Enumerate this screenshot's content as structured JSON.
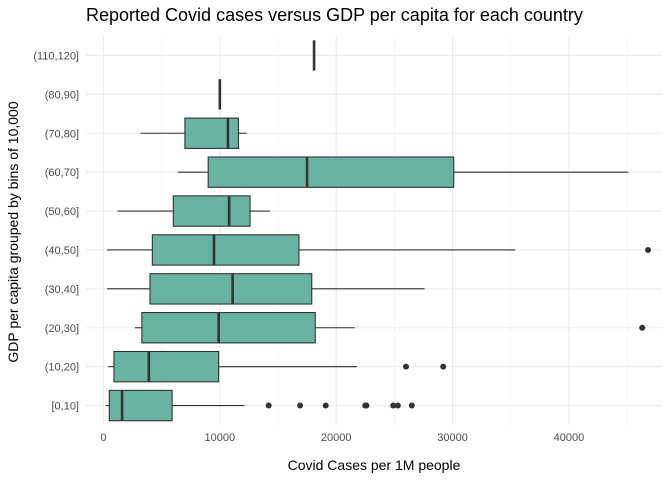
{
  "chart_data": {
    "type": "boxplot",
    "orientation": "horizontal",
    "title": "Reported Covid cases versus GDP per capita for each country",
    "xlabel": "Covid Cases per 1M people",
    "ylabel": "GDP per capita grouped by bins of 10,000",
    "xlim": [
      -1500,
      48000
    ],
    "x_ticks": [
      0,
      10000,
      20000,
      30000,
      40000
    ],
    "x_tick_labels": [
      "0",
      "10000",
      "20000",
      "30000",
      "40000"
    ],
    "x_minor_ticks": [
      5000,
      15000,
      25000,
      35000,
      45000
    ],
    "grid": true,
    "box_color": "#69b3a2",
    "categories": [
      "[0,10]",
      "(10,20]",
      "(20,30]",
      "(30,40]",
      "(40,50]",
      "(50,60]",
      "(60,70]",
      "(70,80]",
      "(80,90]",
      "(110,120]"
    ],
    "boxes": [
      {
        "category": "[0,10]",
        "whisker_low": 200,
        "q1": 500,
        "median": 1600,
        "q3": 5900,
        "whisker_high": 12100,
        "outliers": [
          14200,
          16900,
          19100,
          22500,
          22600,
          24900,
          25300,
          26500
        ]
      },
      {
        "category": "(10,20]",
        "whisker_low": 400,
        "q1": 900,
        "median": 3900,
        "q3": 9900,
        "whisker_high": 21800,
        "outliers": [
          26000,
          29200
        ]
      },
      {
        "category": "(20,30]",
        "whisker_low": 2700,
        "q1": 3300,
        "median": 9900,
        "q3": 18200,
        "whisker_high": 21600,
        "outliers": [
          46300
        ]
      },
      {
        "category": "(30,40]",
        "whisker_low": 300,
        "q1": 4000,
        "median": 11100,
        "q3": 17900,
        "whisker_high": 27600,
        "outliers": []
      },
      {
        "category": "(40,50]",
        "whisker_low": 300,
        "q1": 4200,
        "median": 9500,
        "q3": 16800,
        "whisker_high": 35400,
        "outliers": [
          46800
        ]
      },
      {
        "category": "(50,60]",
        "whisker_low": 1200,
        "q1": 6000,
        "median": 10800,
        "q3": 12600,
        "whisker_high": 14300,
        "outliers": []
      },
      {
        "category": "(60,70]",
        "whisker_low": 6400,
        "q1": 9000,
        "median": 17500,
        "q3": 30100,
        "whisker_high": 45100,
        "outliers": []
      },
      {
        "category": "(70,80]",
        "whisker_low": 3200,
        "q1": 7000,
        "median": 10700,
        "q3": 11600,
        "whisker_high": 12300,
        "outliers": []
      },
      {
        "category": "(80,90]",
        "whisker_low": 10000,
        "q1": 10000,
        "median": 10000,
        "q3": 10000,
        "whisker_high": 10000,
        "outliers": []
      },
      {
        "category": "(110,120]",
        "whisker_low": 18100,
        "q1": 18100,
        "median": 18100,
        "q3": 18100,
        "whisker_high": 18100,
        "outliers": []
      }
    ]
  }
}
